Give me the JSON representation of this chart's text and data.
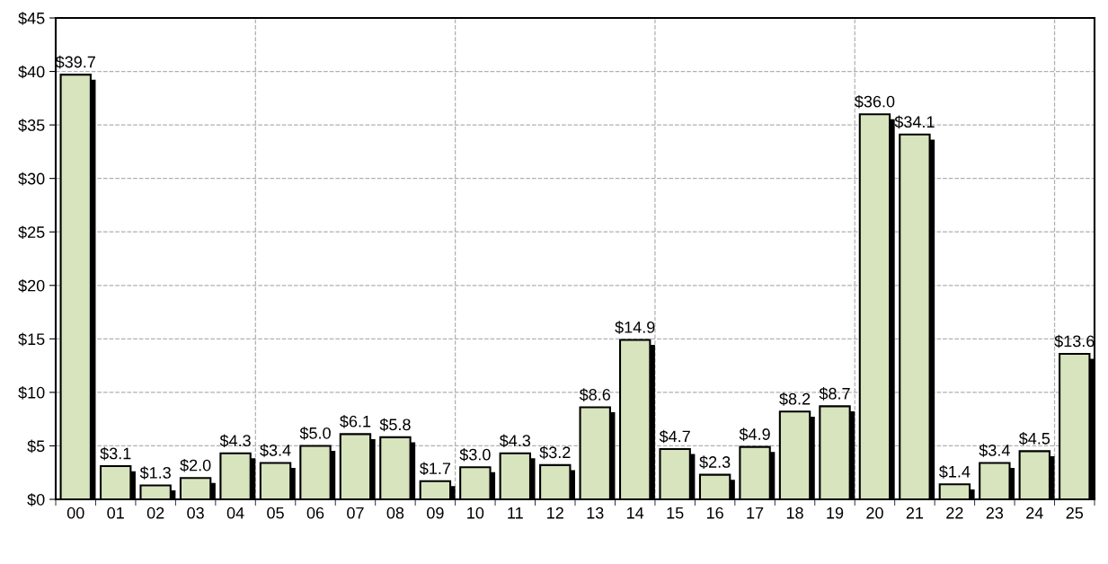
{
  "chart_data": {
    "type": "bar",
    "categories": [
      "00",
      "01",
      "02",
      "03",
      "04",
      "05",
      "06",
      "07",
      "08",
      "09",
      "10",
      "11",
      "12",
      "13",
      "14",
      "15",
      "16",
      "17",
      "18",
      "19",
      "20",
      "21",
      "22",
      "23",
      "24",
      "25"
    ],
    "values": [
      39.7,
      3.1,
      1.3,
      2.0,
      4.3,
      3.4,
      5.0,
      6.1,
      5.8,
      1.7,
      3.0,
      4.3,
      3.2,
      8.6,
      14.9,
      4.7,
      2.3,
      4.9,
      8.2,
      8.7,
      36.0,
      34.1,
      1.4,
      3.4,
      4.5,
      13.6
    ],
    "value_labels": [
      "$39.7",
      "$3.1",
      "$1.3",
      "$2.0",
      "$4.3",
      "$3.4",
      "$5.0",
      "$6.1",
      "$5.8",
      "$1.7",
      "$3.0",
      "$4.3",
      "$3.2",
      "$8.6",
      "$14.9",
      "$4.7",
      "$2.3",
      "$4.9",
      "$8.2",
      "$8.7",
      "$36.0",
      "$34.1",
      "$1.4",
      "$3.4",
      "$4.5",
      "$13.6"
    ],
    "color": "#d7e4bd",
    "ylim": [
      0,
      45
    ],
    "yticks": [
      {
        "value": 0,
        "label": "$0"
      },
      {
        "value": 5,
        "label": "$5"
      },
      {
        "value": 10,
        "label": "$10"
      },
      {
        "value": 15,
        "label": "$15"
      },
      {
        "value": 20,
        "label": "$20"
      },
      {
        "value": 25,
        "label": "$25"
      },
      {
        "value": 30,
        "label": "$30"
      },
      {
        "value": 35,
        "label": "$35"
      },
      {
        "value": 40,
        "label": "$40"
      },
      {
        "value": 45,
        "label": "$45"
      }
    ],
    "grid": true
  }
}
